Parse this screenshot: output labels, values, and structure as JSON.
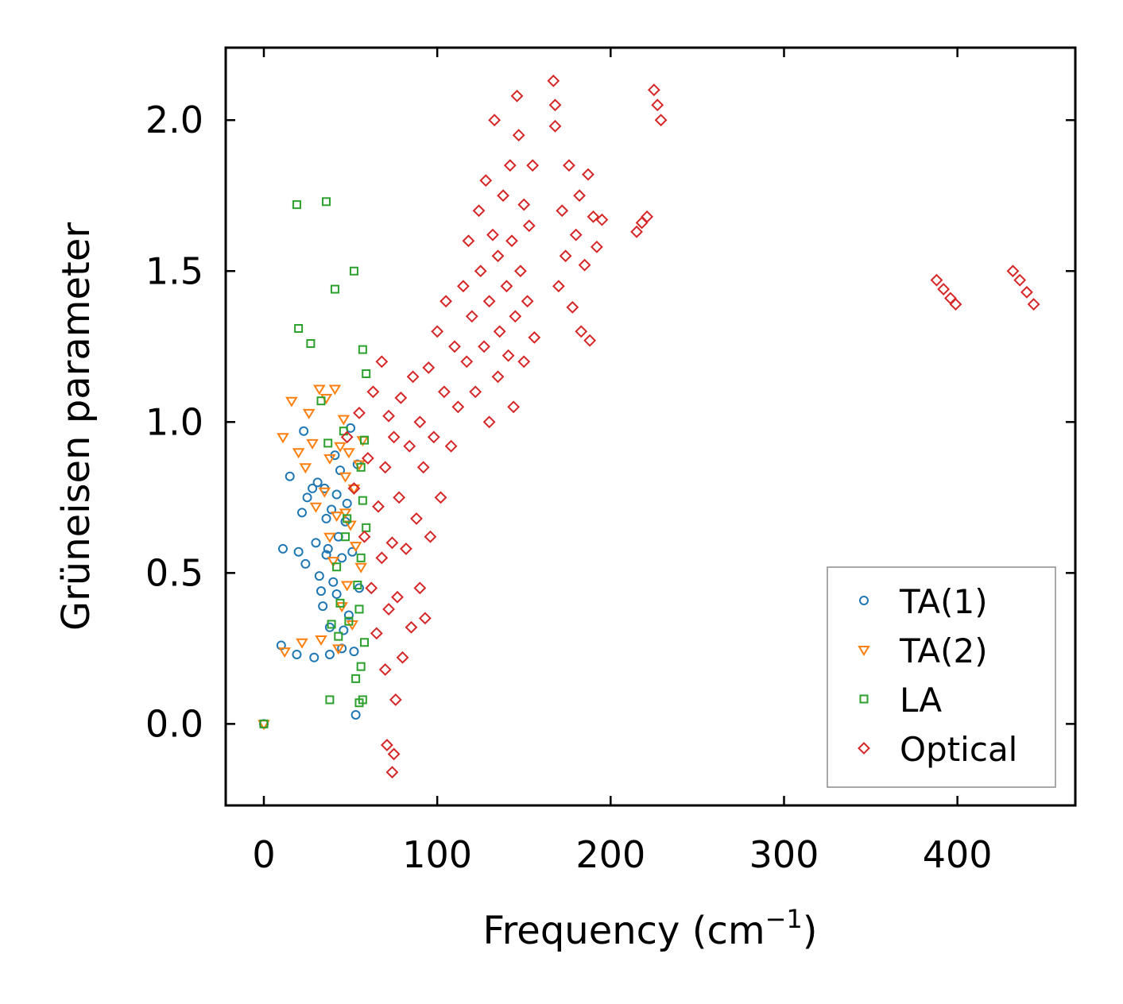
{
  "chart_data": {
    "type": "scatter",
    "title": "",
    "xlabel": "Frequency (cm",
    "xlabel_sup": "−1",
    "xlabel_close": ")",
    "ylabel": "Grüneisen parameter",
    "xlim": [
      -22,
      468
    ],
    "ylim": [
      -0.27,
      2.24
    ],
    "xticks": [
      0,
      100,
      200,
      300,
      400
    ],
    "xtick_labels": [
      "0",
      "100",
      "200",
      "300",
      "400"
    ],
    "yticks": [
      0.0,
      0.5,
      1.0,
      1.5,
      2.0
    ],
    "ytick_labels": [
      "0.0",
      "0.5",
      "1.0",
      "1.5",
      "2.0"
    ],
    "legend_position": "bottom-right",
    "series": [
      {
        "name": "TA(1)",
        "marker": "circle",
        "color": "#1f77b4",
        "points": [
          [
            0,
            0.0
          ],
          [
            10,
            0.26
          ],
          [
            11,
            0.58
          ],
          [
            15,
            0.82
          ],
          [
            19,
            0.23
          ],
          [
            20,
            0.57
          ],
          [
            22,
            0.7
          ],
          [
            23,
            0.97
          ],
          [
            24,
            0.53
          ],
          [
            25,
            0.75
          ],
          [
            28,
            0.78
          ],
          [
            29,
            0.22
          ],
          [
            30,
            0.6
          ],
          [
            31,
            0.8
          ],
          [
            32,
            0.49
          ],
          [
            33,
            0.44
          ],
          [
            34,
            0.39
          ],
          [
            35,
            0.78
          ],
          [
            36,
            0.68
          ],
          [
            37,
            0.58
          ],
          [
            38,
            0.32
          ],
          [
            39,
            0.71
          ],
          [
            40,
            0.47
          ],
          [
            41,
            0.89
          ],
          [
            42,
            0.43
          ],
          [
            43,
            0.62
          ],
          [
            44,
            0.84
          ],
          [
            45,
            0.55
          ],
          [
            46,
            0.31
          ],
          [
            47,
            0.67
          ],
          [
            48,
            0.73
          ],
          [
            49,
            0.36
          ],
          [
            50,
            0.98
          ],
          [
            51,
            0.57
          ],
          [
            52,
            0.24
          ],
          [
            53,
            0.03
          ],
          [
            54,
            0.86
          ],
          [
            55,
            0.45
          ],
          [
            45,
            0.25
          ],
          [
            38,
            0.23
          ],
          [
            36,
            0.56
          ],
          [
            42,
            0.76
          ]
        ]
      },
      {
        "name": "TA(2)",
        "marker": "triangle-down",
        "color": "#ff7f0e",
        "points": [
          [
            0,
            0.0
          ],
          [
            11,
            0.95
          ],
          [
            12,
            0.24
          ],
          [
            16,
            1.07
          ],
          [
            20,
            0.9
          ],
          [
            22,
            0.27
          ],
          [
            24,
            0.85
          ],
          [
            26,
            1.03
          ],
          [
            28,
            0.93
          ],
          [
            30,
            0.72
          ],
          [
            32,
            1.11
          ],
          [
            33,
            0.28
          ],
          [
            35,
            0.77
          ],
          [
            36,
            1.08
          ],
          [
            38,
            0.88
          ],
          [
            40,
            0.54
          ],
          [
            41,
            1.11
          ],
          [
            42,
            0.69
          ],
          [
            44,
            0.92
          ],
          [
            45,
            0.39
          ],
          [
            46,
            1.01
          ],
          [
            47,
            0.82
          ],
          [
            48,
            0.46
          ],
          [
            49,
            0.9
          ],
          [
            50,
            0.66
          ],
          [
            51,
            0.33
          ],
          [
            52,
            0.78
          ],
          [
            53,
            0.59
          ],
          [
            55,
            0.86
          ],
          [
            56,
            0.52
          ],
          [
            57,
            0.94
          ],
          [
            38,
            0.62
          ],
          [
            43,
            0.25
          ],
          [
            47,
            0.7
          ]
        ]
      },
      {
        "name": "LA",
        "marker": "square",
        "color": "#2ca02c",
        "points": [
          [
            0,
            0.0
          ],
          [
            19,
            1.72
          ],
          [
            20,
            1.31
          ],
          [
            27,
            1.26
          ],
          [
            33,
            1.07
          ],
          [
            36,
            1.73
          ],
          [
            37,
            0.93
          ],
          [
            38,
            0.08
          ],
          [
            39,
            0.33
          ],
          [
            41,
            1.44
          ],
          [
            42,
            0.52
          ],
          [
            43,
            0.29
          ],
          [
            44,
            0.4
          ],
          [
            46,
            0.97
          ],
          [
            47,
            0.62
          ],
          [
            48,
            0.68
          ],
          [
            49,
            0.34
          ],
          [
            52,
            1.5
          ],
          [
            53,
            0.15
          ],
          [
            54,
            0.46
          ],
          [
            55,
            0.07
          ],
          [
            56,
            0.85
          ],
          [
            57,
            0.74
          ],
          [
            57,
            1.24
          ],
          [
            58,
            0.27
          ],
          [
            58,
            0.94
          ],
          [
            59,
            0.65
          ],
          [
            59,
            1.16
          ],
          [
            56,
            0.19
          ],
          [
            55,
            0.38
          ],
          [
            57,
            0.08
          ],
          [
            56,
            0.55
          ]
        ]
      },
      {
        "name": "Optical",
        "marker": "diamond",
        "color": "#d62728",
        "points": [
          [
            48,
            0.95
          ],
          [
            52,
            0.78
          ],
          [
            55,
            1.03
          ],
          [
            58,
            0.62
          ],
          [
            60,
            0.88
          ],
          [
            62,
            0.45
          ],
          [
            63,
            1.1
          ],
          [
            65,
            0.3
          ],
          [
            66,
            0.72
          ],
          [
            68,
            0.55
          ],
          [
            68,
            1.2
          ],
          [
            70,
            0.18
          ],
          [
            70,
            0.85
          ],
          [
            71,
            -0.07
          ],
          [
            72,
            0.38
          ],
          [
            72,
            1.02
          ],
          [
            74,
            -0.16
          ],
          [
            74,
            0.6
          ],
          [
            75,
            -0.1
          ],
          [
            75,
            0.95
          ],
          [
            76,
            0.08
          ],
          [
            77,
            0.42
          ],
          [
            78,
            0.75
          ],
          [
            79,
            1.08
          ],
          [
            80,
            0.22
          ],
          [
            82,
            0.58
          ],
          [
            84,
            0.92
          ],
          [
            85,
            0.32
          ],
          [
            86,
            1.15
          ],
          [
            88,
            0.68
          ],
          [
            90,
            0.45
          ],
          [
            90,
            1.0
          ],
          [
            92,
            0.85
          ],
          [
            93,
            0.35
          ],
          [
            95,
            1.18
          ],
          [
            96,
            0.62
          ],
          [
            98,
            0.95
          ],
          [
            100,
            1.3
          ],
          [
            102,
            0.75
          ],
          [
            104,
            1.1
          ],
          [
            105,
            1.4
          ],
          [
            108,
            0.92
          ],
          [
            110,
            1.25
          ],
          [
            112,
            1.05
          ],
          [
            115,
            1.45
          ],
          [
            117,
            1.2
          ],
          [
            118,
            1.6
          ],
          [
            120,
            1.35
          ],
          [
            122,
            1.1
          ],
          [
            124,
            1.7
          ],
          [
            125,
            1.5
          ],
          [
            127,
            1.25
          ],
          [
            128,
            1.8
          ],
          [
            130,
            1.0
          ],
          [
            130,
            1.4
          ],
          [
            132,
            1.62
          ],
          [
            133,
            2.0
          ],
          [
            135,
            1.15
          ],
          [
            135,
            1.55
          ],
          [
            136,
            1.3
          ],
          [
            138,
            1.75
          ],
          [
            140,
            1.45
          ],
          [
            141,
            1.22
          ],
          [
            142,
            1.85
          ],
          [
            143,
            1.6
          ],
          [
            144,
            1.05
          ],
          [
            145,
            1.35
          ],
          [
            146,
            2.08
          ],
          [
            147,
            1.95
          ],
          [
            148,
            1.5
          ],
          [
            150,
            1.2
          ],
          [
            150,
            1.72
          ],
          [
            152,
            1.4
          ],
          [
            153,
            1.65
          ],
          [
            155,
            1.85
          ],
          [
            156,
            1.28
          ],
          [
            167,
            2.13
          ],
          [
            168,
            2.05
          ],
          [
            168,
            1.98
          ],
          [
            170,
            1.45
          ],
          [
            172,
            1.7
          ],
          [
            174,
            1.55
          ],
          [
            176,
            1.85
          ],
          [
            178,
            1.38
          ],
          [
            180,
            1.62
          ],
          [
            182,
            1.75
          ],
          [
            183,
            1.3
          ],
          [
            185,
            1.52
          ],
          [
            187,
            1.82
          ],
          [
            188,
            1.27
          ],
          [
            190,
            1.68
          ],
          [
            192,
            1.58
          ],
          [
            195,
            1.67
          ],
          [
            215,
            1.63
          ],
          [
            218,
            1.66
          ],
          [
            221,
            1.68
          ],
          [
            225,
            2.1
          ],
          [
            227,
            2.05
          ],
          [
            229,
            2.0
          ],
          [
            388,
            1.47
          ],
          [
            392,
            1.44
          ],
          [
            396,
            1.41
          ],
          [
            399,
            1.39
          ],
          [
            432,
            1.5
          ],
          [
            436,
            1.47
          ],
          [
            440,
            1.43
          ],
          [
            444,
            1.39
          ]
        ]
      }
    ]
  }
}
